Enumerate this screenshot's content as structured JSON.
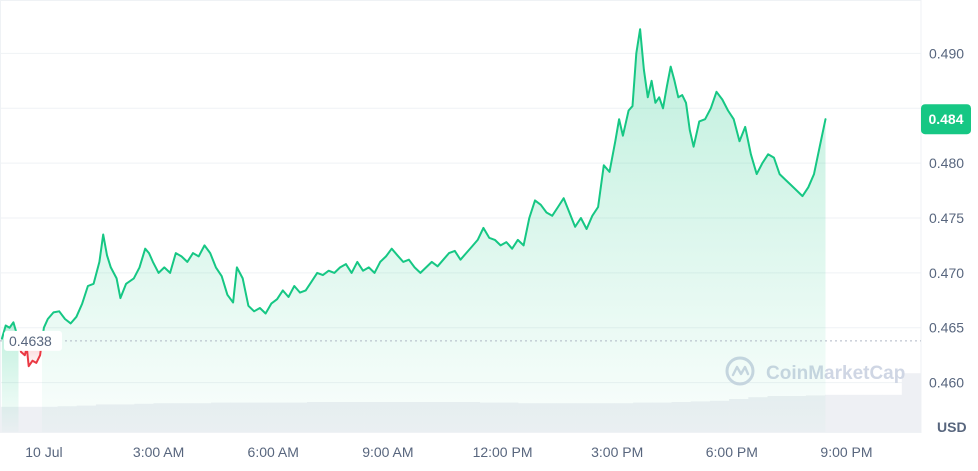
{
  "chart_data": {
    "type": "area",
    "currency": "USD",
    "watermark": "CoinMarketCap",
    "current_price_label": "0.484",
    "reference_label": "0.4638",
    "reference_value": 0.4638,
    "ylim": [
      0.4555,
      0.4945
    ],
    "y_ticks": [
      {
        "value": 0.49,
        "label": "0.490"
      },
      {
        "value": 0.485,
        "label": ""
      },
      {
        "value": 0.48,
        "label": "0.480"
      },
      {
        "value": 0.475,
        "label": "0.475"
      },
      {
        "value": 0.47,
        "label": "0.470"
      },
      {
        "value": 0.465,
        "label": "0.465"
      },
      {
        "value": 0.46,
        "label": "0.460"
      }
    ],
    "x_tick_labels": [
      "10 Jul",
      "3:00 AM",
      "6:00 AM",
      "9:00 AM",
      "12:00 PM",
      "3:00 PM",
      "6:00 PM",
      "9:00 PM"
    ],
    "x_tick_hours": [
      0,
      3,
      6,
      9,
      12,
      15,
      18,
      21
    ],
    "x_range_hours": [
      -1.15,
      22.95
    ],
    "colors": {
      "up": "#16c784",
      "down": "#ea3943",
      "grid": "#eff2f5",
      "axis_text": "#58667e",
      "volume": "#eef0f4",
      "watermark": "#cfd6e4"
    },
    "series": [
      {
        "name": "Price",
        "points": [
          [
            -1.1,
            0.464
          ],
          [
            -1.0,
            0.4652
          ],
          [
            -0.9,
            0.465
          ],
          [
            -0.8,
            0.4655
          ],
          [
            -0.7,
            0.4643
          ],
          [
            -0.6,
            0.4628
          ],
          [
            -0.5,
            0.4625
          ],
          [
            -0.45,
            0.4632
          ],
          [
            -0.4,
            0.4615
          ],
          [
            -0.3,
            0.462
          ],
          [
            -0.2,
            0.4618
          ],
          [
            -0.1,
            0.4625
          ],
          [
            -0.05,
            0.4638
          ],
          [
            0.0,
            0.465
          ],
          [
            0.1,
            0.4658
          ],
          [
            0.25,
            0.4664
          ],
          [
            0.4,
            0.4665
          ],
          [
            0.55,
            0.4658
          ],
          [
            0.7,
            0.4654
          ],
          [
            0.85,
            0.466
          ],
          [
            1.0,
            0.4672
          ],
          [
            1.15,
            0.4688
          ],
          [
            1.3,
            0.469
          ],
          [
            1.45,
            0.471
          ],
          [
            1.55,
            0.4735
          ],
          [
            1.65,
            0.4716
          ],
          [
            1.75,
            0.4705
          ],
          [
            1.9,
            0.4695
          ],
          [
            2.0,
            0.4677
          ],
          [
            2.15,
            0.469
          ],
          [
            2.35,
            0.4695
          ],
          [
            2.5,
            0.4705
          ],
          [
            2.65,
            0.4722
          ],
          [
            2.75,
            0.4718
          ],
          [
            2.85,
            0.471
          ],
          [
            3.0,
            0.47
          ],
          [
            3.15,
            0.4705
          ],
          [
            3.3,
            0.47
          ],
          [
            3.45,
            0.4718
          ],
          [
            3.6,
            0.4715
          ],
          [
            3.75,
            0.471
          ],
          [
            3.9,
            0.4718
          ],
          [
            4.05,
            0.4715
          ],
          [
            4.2,
            0.4725
          ],
          [
            4.35,
            0.4718
          ],
          [
            4.5,
            0.4705
          ],
          [
            4.65,
            0.4697
          ],
          [
            4.8,
            0.468
          ],
          [
            4.95,
            0.4673
          ],
          [
            5.05,
            0.4705
          ],
          [
            5.2,
            0.4695
          ],
          [
            5.35,
            0.467
          ],
          [
            5.5,
            0.4665
          ],
          [
            5.65,
            0.4668
          ],
          [
            5.8,
            0.4663
          ],
          [
            5.95,
            0.4672
          ],
          [
            6.1,
            0.4676
          ],
          [
            6.25,
            0.4684
          ],
          [
            6.4,
            0.4678
          ],
          [
            6.55,
            0.4688
          ],
          [
            6.7,
            0.4682
          ],
          [
            6.85,
            0.4684
          ],
          [
            7.0,
            0.4692
          ],
          [
            7.15,
            0.47
          ],
          [
            7.3,
            0.4698
          ],
          [
            7.45,
            0.4702
          ],
          [
            7.6,
            0.47
          ],
          [
            7.75,
            0.4705
          ],
          [
            7.9,
            0.4708
          ],
          [
            8.05,
            0.47
          ],
          [
            8.2,
            0.471
          ],
          [
            8.35,
            0.4702
          ],
          [
            8.5,
            0.4705
          ],
          [
            8.65,
            0.47
          ],
          [
            8.8,
            0.471
          ],
          [
            8.95,
            0.4715
          ],
          [
            9.1,
            0.4722
          ],
          [
            9.25,
            0.4716
          ],
          [
            9.4,
            0.471
          ],
          [
            9.55,
            0.4712
          ],
          [
            9.7,
            0.4705
          ],
          [
            9.85,
            0.47
          ],
          [
            10.0,
            0.4705
          ],
          [
            10.15,
            0.471
          ],
          [
            10.3,
            0.4706
          ],
          [
            10.45,
            0.4712
          ],
          [
            10.6,
            0.4718
          ],
          [
            10.75,
            0.472
          ],
          [
            10.9,
            0.4712
          ],
          [
            11.05,
            0.4718
          ],
          [
            11.2,
            0.4724
          ],
          [
            11.35,
            0.473
          ],
          [
            11.5,
            0.4741
          ],
          [
            11.65,
            0.4732
          ],
          [
            11.8,
            0.473
          ],
          [
            11.95,
            0.4725
          ],
          [
            12.1,
            0.4728
          ],
          [
            12.25,
            0.4722
          ],
          [
            12.4,
            0.473
          ],
          [
            12.55,
            0.4725
          ],
          [
            12.7,
            0.475
          ],
          [
            12.85,
            0.4766
          ],
          [
            13.0,
            0.4762
          ],
          [
            13.15,
            0.4755
          ],
          [
            13.3,
            0.4752
          ],
          [
            13.45,
            0.476
          ],
          [
            13.6,
            0.4768
          ],
          [
            13.75,
            0.4755
          ],
          [
            13.9,
            0.4742
          ],
          [
            14.05,
            0.475
          ],
          [
            14.2,
            0.474
          ],
          [
            14.35,
            0.4752
          ],
          [
            14.5,
            0.476
          ],
          [
            14.65,
            0.4798
          ],
          [
            14.8,
            0.4792
          ],
          [
            14.95,
            0.482
          ],
          [
            15.05,
            0.484
          ],
          [
            15.15,
            0.4825
          ],
          [
            15.3,
            0.4848
          ],
          [
            15.4,
            0.4852
          ],
          [
            15.5,
            0.49
          ],
          [
            15.6,
            0.4922
          ],
          [
            15.7,
            0.4885
          ],
          [
            15.8,
            0.486
          ],
          [
            15.9,
            0.4875
          ],
          [
            16.0,
            0.4855
          ],
          [
            16.1,
            0.486
          ],
          [
            16.2,
            0.485
          ],
          [
            16.3,
            0.487
          ],
          [
            16.4,
            0.4888
          ],
          [
            16.5,
            0.4875
          ],
          [
            16.6,
            0.486
          ],
          [
            16.7,
            0.4862
          ],
          [
            16.8,
            0.4855
          ],
          [
            16.9,
            0.483
          ],
          [
            17.0,
            0.4815
          ],
          [
            17.15,
            0.4838
          ],
          [
            17.3,
            0.484
          ],
          [
            17.45,
            0.485
          ],
          [
            17.6,
            0.4865
          ],
          [
            17.75,
            0.4858
          ],
          [
            17.9,
            0.4848
          ],
          [
            18.05,
            0.484
          ],
          [
            18.2,
            0.482
          ],
          [
            18.35,
            0.4833
          ],
          [
            18.5,
            0.4808
          ],
          [
            18.65,
            0.479
          ],
          [
            18.8,
            0.48
          ],
          [
            18.95,
            0.4808
          ],
          [
            19.1,
            0.4805
          ],
          [
            19.25,
            0.479
          ],
          [
            19.4,
            0.4785
          ],
          [
            19.55,
            0.478
          ],
          [
            19.7,
            0.4775
          ],
          [
            19.85,
            0.477
          ],
          [
            20.0,
            0.4778
          ],
          [
            20.15,
            0.479
          ],
          [
            20.3,
            0.4815
          ],
          [
            20.45,
            0.484
          ]
        ]
      }
    ],
    "volume": [
      0.42,
      0.42,
      0.42,
      0.43,
      0.44,
      0.46,
      0.46,
      0.47,
      0.48,
      0.48,
      0.48,
      0.49,
      0.49,
      0.49,
      0.49,
      0.49,
      0.5,
      0.5,
      0.5,
      0.5,
      0.5,
      0.5,
      0.5,
      0.5,
      0.5,
      0.49,
      0.49,
      0.48,
      0.48,
      0.48,
      0.48,
      0.48,
      0.48,
      0.49,
      0.49,
      0.5,
      0.51,
      0.52,
      0.55,
      0.58,
      0.6,
      0.6,
      0.61,
      0.62,
      0.62,
      0.62,
      0.62,
      0.98
    ]
  }
}
